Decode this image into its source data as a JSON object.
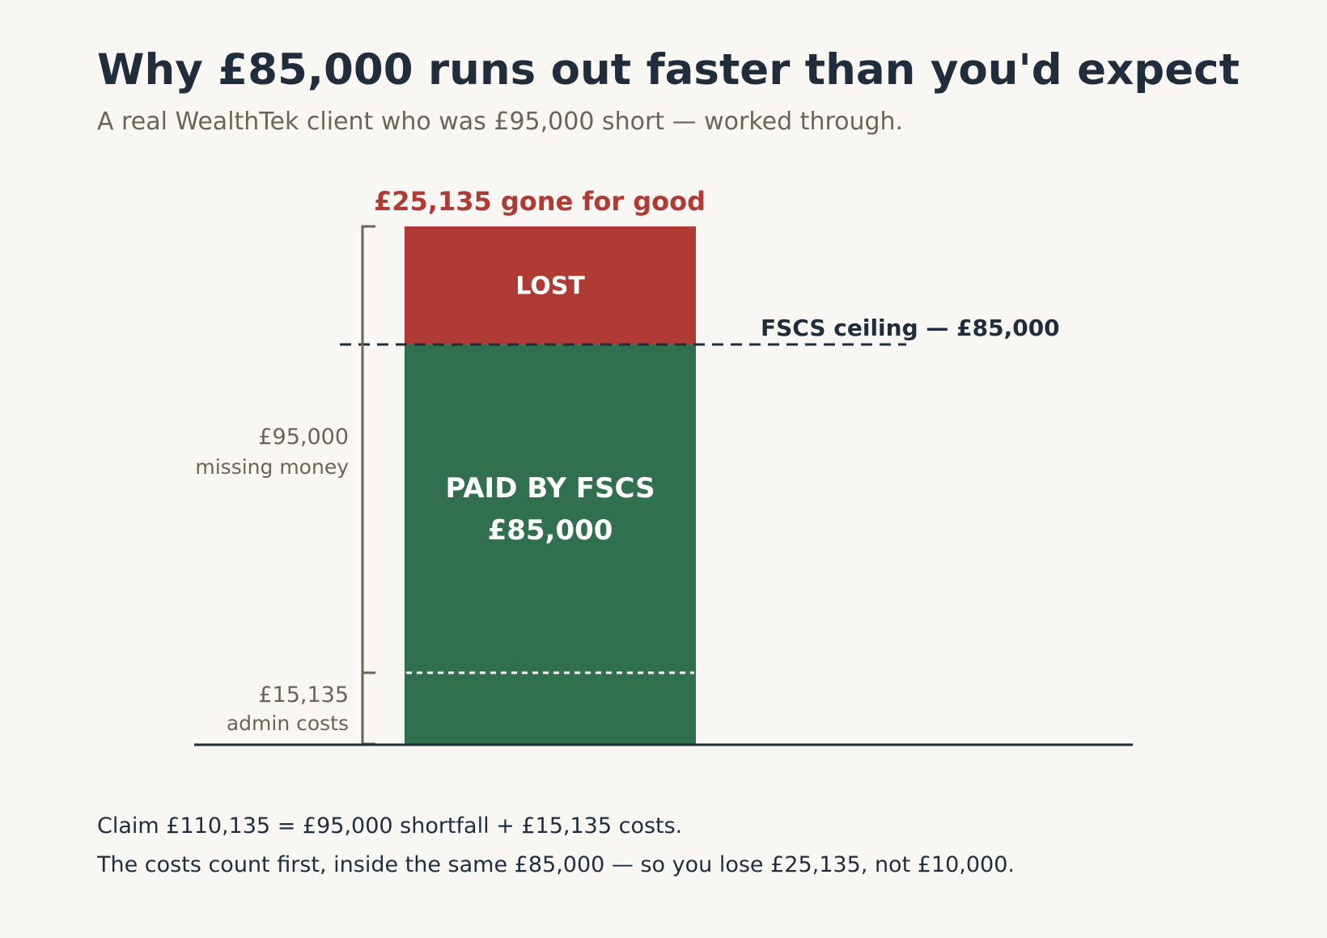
{
  "title": "Why £85,000 runs out faster than you'd expect",
  "subtitle": "A real WealthTek client who was £95,000 short — worked through.",
  "colors": {
    "lost": "#b03a34",
    "paid": "#31704f",
    "ink": "#1f2d3d",
    "muted": "#6b6457",
    "background": "#f9f7f3"
  },
  "chart_data": {
    "type": "bar",
    "stacked": true,
    "ylim": [
      0,
      110135
    ],
    "segments": [
      {
        "key": "admin",
        "value": 15135,
        "color": "#31704f"
      },
      {
        "key": "paid",
        "value": 69865,
        "color": "#31704f",
        "label_lines": [
          "PAID BY FSCS",
          "£85,000"
        ]
      },
      {
        "key": "lost",
        "value": 25135,
        "color": "#b03a34",
        "label_lines": [
          "LOST"
        ]
      }
    ],
    "reference_line": {
      "value": 85000,
      "label": "FSCS ceiling — £85,000"
    },
    "top_annotation": "£25,135 gone for good",
    "brackets": [
      {
        "from": 0,
        "to": 15135,
        "amount": "£15,135",
        "desc": "admin costs"
      },
      {
        "from": 15135,
        "to": 110135,
        "amount": "£95,000",
        "desc": "missing money"
      }
    ],
    "grid": false,
    "legend": "none"
  },
  "footer": {
    "line1": "Claim £110,135 = £95,000 shortfall + £15,135 costs.",
    "line2": "The costs count first, inside the same £85,000 — so you lose £25,135, not £10,000."
  }
}
